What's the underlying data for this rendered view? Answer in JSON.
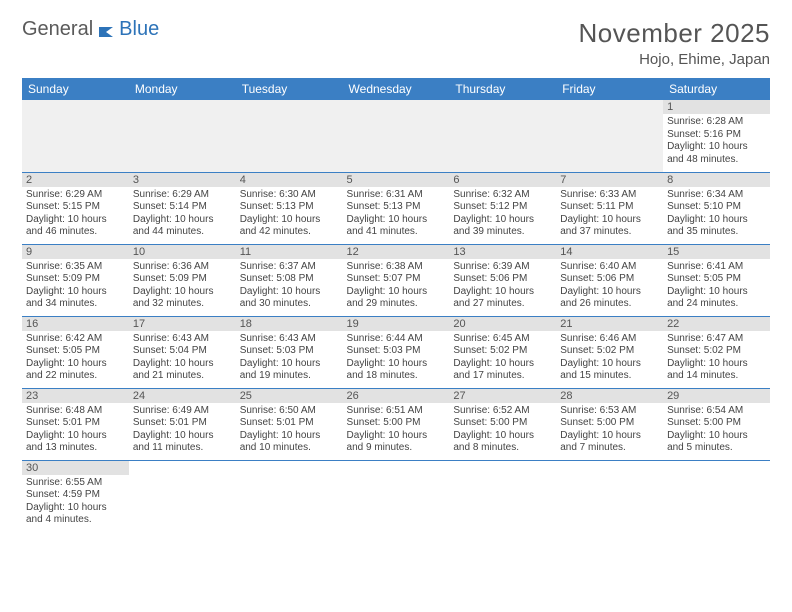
{
  "logo": {
    "general": "General",
    "blue": "Blue"
  },
  "title": "November 2025",
  "location": "Hojo, Ehime, Japan",
  "colors": {
    "header_bg": "#3b7fc4",
    "header_text": "#ffffff",
    "daynum_bg": "#e2e2e2",
    "border": "#3b7fc4",
    "text": "#444444"
  },
  "weekdays": [
    "Sunday",
    "Monday",
    "Tuesday",
    "Wednesday",
    "Thursday",
    "Friday",
    "Saturday"
  ],
  "weeks": [
    [
      null,
      null,
      null,
      null,
      null,
      null,
      {
        "n": "1",
        "sr": "6:28 AM",
        "ss": "5:16 PM",
        "dl": "10 hours and 48 minutes."
      }
    ],
    [
      {
        "n": "2",
        "sr": "6:29 AM",
        "ss": "5:15 PM",
        "dl": "10 hours and 46 minutes."
      },
      {
        "n": "3",
        "sr": "6:29 AM",
        "ss": "5:14 PM",
        "dl": "10 hours and 44 minutes."
      },
      {
        "n": "4",
        "sr": "6:30 AM",
        "ss": "5:13 PM",
        "dl": "10 hours and 42 minutes."
      },
      {
        "n": "5",
        "sr": "6:31 AM",
        "ss": "5:13 PM",
        "dl": "10 hours and 41 minutes."
      },
      {
        "n": "6",
        "sr": "6:32 AM",
        "ss": "5:12 PM",
        "dl": "10 hours and 39 minutes."
      },
      {
        "n": "7",
        "sr": "6:33 AM",
        "ss": "5:11 PM",
        "dl": "10 hours and 37 minutes."
      },
      {
        "n": "8",
        "sr": "6:34 AM",
        "ss": "5:10 PM",
        "dl": "10 hours and 35 minutes."
      }
    ],
    [
      {
        "n": "9",
        "sr": "6:35 AM",
        "ss": "5:09 PM",
        "dl": "10 hours and 34 minutes."
      },
      {
        "n": "10",
        "sr": "6:36 AM",
        "ss": "5:09 PM",
        "dl": "10 hours and 32 minutes."
      },
      {
        "n": "11",
        "sr": "6:37 AM",
        "ss": "5:08 PM",
        "dl": "10 hours and 30 minutes."
      },
      {
        "n": "12",
        "sr": "6:38 AM",
        "ss": "5:07 PM",
        "dl": "10 hours and 29 minutes."
      },
      {
        "n": "13",
        "sr": "6:39 AM",
        "ss": "5:06 PM",
        "dl": "10 hours and 27 minutes."
      },
      {
        "n": "14",
        "sr": "6:40 AM",
        "ss": "5:06 PM",
        "dl": "10 hours and 26 minutes."
      },
      {
        "n": "15",
        "sr": "6:41 AM",
        "ss": "5:05 PM",
        "dl": "10 hours and 24 minutes."
      }
    ],
    [
      {
        "n": "16",
        "sr": "6:42 AM",
        "ss": "5:05 PM",
        "dl": "10 hours and 22 minutes."
      },
      {
        "n": "17",
        "sr": "6:43 AM",
        "ss": "5:04 PM",
        "dl": "10 hours and 21 minutes."
      },
      {
        "n": "18",
        "sr": "6:43 AM",
        "ss": "5:03 PM",
        "dl": "10 hours and 19 minutes."
      },
      {
        "n": "19",
        "sr": "6:44 AM",
        "ss": "5:03 PM",
        "dl": "10 hours and 18 minutes."
      },
      {
        "n": "20",
        "sr": "6:45 AM",
        "ss": "5:02 PM",
        "dl": "10 hours and 17 minutes."
      },
      {
        "n": "21",
        "sr": "6:46 AM",
        "ss": "5:02 PM",
        "dl": "10 hours and 15 minutes."
      },
      {
        "n": "22",
        "sr": "6:47 AM",
        "ss": "5:02 PM",
        "dl": "10 hours and 14 minutes."
      }
    ],
    [
      {
        "n": "23",
        "sr": "6:48 AM",
        "ss": "5:01 PM",
        "dl": "10 hours and 13 minutes."
      },
      {
        "n": "24",
        "sr": "6:49 AM",
        "ss": "5:01 PM",
        "dl": "10 hours and 11 minutes."
      },
      {
        "n": "25",
        "sr": "6:50 AM",
        "ss": "5:01 PM",
        "dl": "10 hours and 10 minutes."
      },
      {
        "n": "26",
        "sr": "6:51 AM",
        "ss": "5:00 PM",
        "dl": "10 hours and 9 minutes."
      },
      {
        "n": "27",
        "sr": "6:52 AM",
        "ss": "5:00 PM",
        "dl": "10 hours and 8 minutes."
      },
      {
        "n": "28",
        "sr": "6:53 AM",
        "ss": "5:00 PM",
        "dl": "10 hours and 7 minutes."
      },
      {
        "n": "29",
        "sr": "6:54 AM",
        "ss": "5:00 PM",
        "dl": "10 hours and 5 minutes."
      }
    ],
    [
      {
        "n": "30",
        "sr": "6:55 AM",
        "ss": "4:59 PM",
        "dl": "10 hours and 4 minutes."
      },
      null,
      null,
      null,
      null,
      null,
      null
    ]
  ],
  "labels": {
    "sunrise": "Sunrise:",
    "sunset": "Sunset:",
    "daylight": "Daylight:"
  }
}
